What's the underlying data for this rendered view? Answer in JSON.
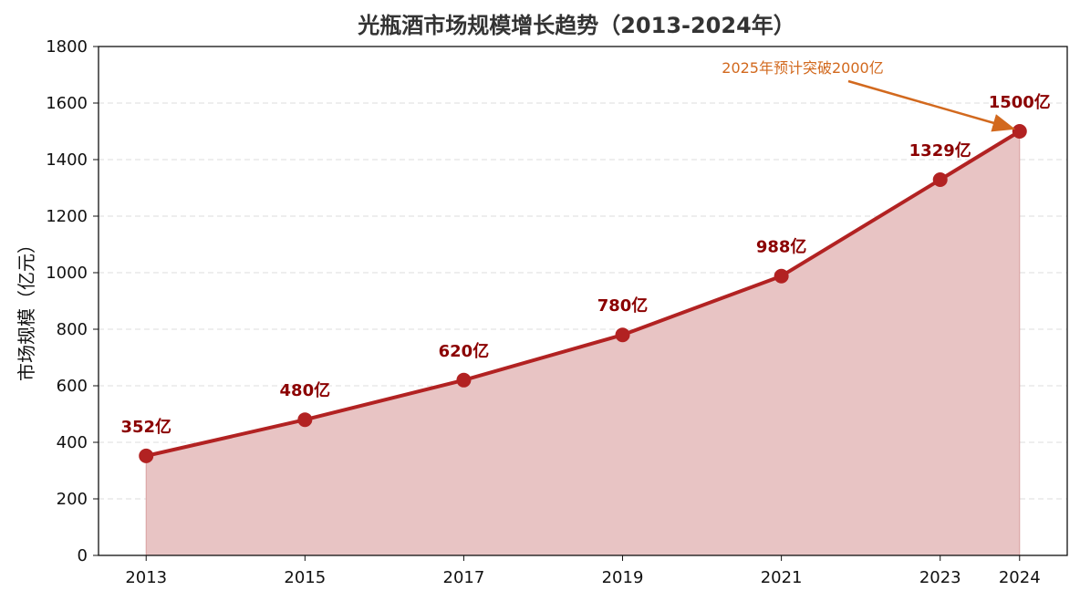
{
  "chart_data": {
    "type": "area",
    "title": "光瓶酒市场规模增长趋势（2013-2024年）",
    "xlabel": "",
    "ylabel": "市场规模（亿元）",
    "x": [
      "2013",
      "2015",
      "2017",
      "2019",
      "2021",
      "2023",
      "2024"
    ],
    "series": [
      {
        "values": [
          352,
          480,
          620,
          780,
          988,
          1329,
          1500
        ]
      }
    ],
    "data_labels": [
      "352亿",
      "480亿",
      "620亿",
      "780亿",
      "988亿",
      "1329亿",
      "1500亿"
    ],
    "ylim": [
      0,
      1800
    ],
    "yticks": [
      0,
      200,
      400,
      600,
      800,
      1000,
      1200,
      1400,
      1600,
      1800
    ],
    "grid": {
      "y": true,
      "style": "dashed"
    },
    "legend": "none",
    "annotation": {
      "text": "2025年预计突破2000亿",
      "points_to_x": "2024",
      "points_to_y": 1500
    },
    "colors": {
      "line": "#b22222",
      "fill": "#e8c4c4",
      "label": "#8b0000",
      "annotation": "#d2691e",
      "grid": "#dddddd"
    }
  }
}
